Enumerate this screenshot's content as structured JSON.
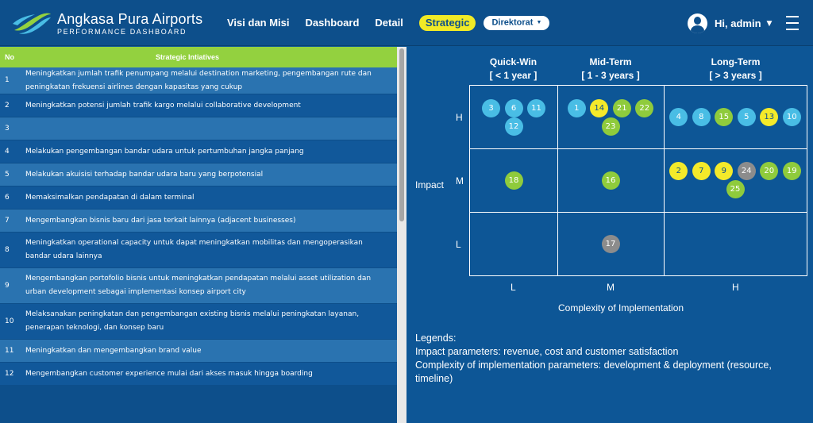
{
  "brand": {
    "name": "Angkasa Pura Airports",
    "subtitle": "PERFORMANCE DASHBOARD"
  },
  "nav": {
    "items": [
      "Visi dan Misi",
      "Dashboard",
      "Detail"
    ],
    "active": "Strategic",
    "dropdown": "Direktorat"
  },
  "user": {
    "greeting": "Hi, admin"
  },
  "table": {
    "headers": {
      "no": "No",
      "title": "Strategic Intiatives"
    },
    "rows": [
      {
        "no": "1",
        "text": "Meningkatkan jumlah trafik penumpang melalui destination marketing, pengembangan rute dan peningkatan frekuensi airlines dengan kapasitas yang cukup"
      },
      {
        "no": "2",
        "text": "Meningkatkan potensi jumlah trafik kargo melalui collaborative development"
      },
      {
        "no": "3",
        "text": ""
      },
      {
        "no": "4",
        "text": "Melakukan pengembangan bandar udara untuk pertumbuhan jangka panjang"
      },
      {
        "no": "5",
        "text": "Melakukan akuisisi terhadap bandar udara baru yang berpotensial"
      },
      {
        "no": "6",
        "text": "Memaksimalkan pendapatan di dalam terminal"
      },
      {
        "no": "7",
        "text": "Mengembangkan bisnis baru dari jasa terkait lainnya (adjacent businesses)"
      },
      {
        "no": "8",
        "text": "Meningkatkan operational capacity untuk dapat meningkatkan mobilitas dan mengoperasikan bandar udara lainnya"
      },
      {
        "no": "9",
        "text": "Mengembangkan portofolio bisnis untuk meningkatkan pendapatan melalui asset utilization dan urban development sebagai implementasi konsep airport city"
      },
      {
        "no": "10",
        "text": "Melaksanakan peningkatan dan pengembangan existing bisnis melalui peningkatan layanan, penerapan teknologi, dan konsep baru"
      },
      {
        "no": "11",
        "text": "Meningkatkan dan mengembangkan brand value"
      },
      {
        "no": "12",
        "text": "Mengembangkan customer experience mulai dari akses masuk hingga boarding"
      }
    ]
  },
  "matrix": {
    "columns": [
      {
        "title": "Quick-Win",
        "sub": "[ < 1 year ]"
      },
      {
        "title": "Mid-Term",
        "sub": "[ 1 - 3 years ]"
      },
      {
        "title": "Long-Term",
        "sub": "[ > 3 years ]"
      }
    ],
    "row_labels": [
      "H",
      "M",
      "L"
    ],
    "col_labels": [
      "L",
      "M",
      "H"
    ],
    "y_axis_label": "Impact",
    "x_axis_label": "Complexity of Implementation",
    "colors": {
      "blue": "#49bde5",
      "green": "#8fcb3c",
      "yellow": "#f4ea2a",
      "gray": "#8c8c8c"
    },
    "cells": [
      {
        "row": "H",
        "col": "L",
        "items": [
          {
            "n": "3",
            "c": "blue"
          },
          {
            "n": "6",
            "c": "blue"
          },
          {
            "n": "11",
            "c": "blue"
          },
          {
            "n": "12",
            "c": "blue"
          }
        ]
      },
      {
        "row": "H",
        "col": "M",
        "items": [
          {
            "n": "1",
            "c": "blue"
          },
          {
            "n": "14",
            "c": "yellow"
          },
          {
            "n": "21",
            "c": "green"
          },
          {
            "n": "22",
            "c": "green"
          },
          {
            "n": "23",
            "c": "green"
          }
        ]
      },
      {
        "row": "H",
        "col": "H",
        "items": [
          {
            "n": "4",
            "c": "blue"
          },
          {
            "n": "8",
            "c": "blue"
          },
          {
            "n": "15",
            "c": "green"
          },
          {
            "n": "5",
            "c": "blue"
          },
          {
            "n": "13",
            "c": "yellow"
          },
          {
            "n": "10",
            "c": "blue"
          }
        ]
      },
      {
        "row": "M",
        "col": "L",
        "items": [
          {
            "n": "18",
            "c": "green"
          }
        ]
      },
      {
        "row": "M",
        "col": "M",
        "items": [
          {
            "n": "16",
            "c": "green"
          }
        ]
      },
      {
        "row": "M",
        "col": "H",
        "items": [
          {
            "n": "2",
            "c": "yellow"
          },
          {
            "n": "7",
            "c": "yellow"
          },
          {
            "n": "9",
            "c": "yellow"
          },
          {
            "n": "24",
            "c": "gray"
          },
          {
            "n": "20",
            "c": "green"
          },
          {
            "n": "19",
            "c": "green"
          },
          {
            "n": "25",
            "c": "green"
          }
        ]
      },
      {
        "row": "L",
        "col": "M",
        "items": [
          {
            "n": "17",
            "c": "gray"
          }
        ]
      }
    ]
  },
  "legend": {
    "title": "Legends:",
    "impact": "Impact parameters: revenue, cost and customer satisfaction",
    "complexity": "Complexity of implementation parameters: development & deployment (resource, timeline)"
  }
}
